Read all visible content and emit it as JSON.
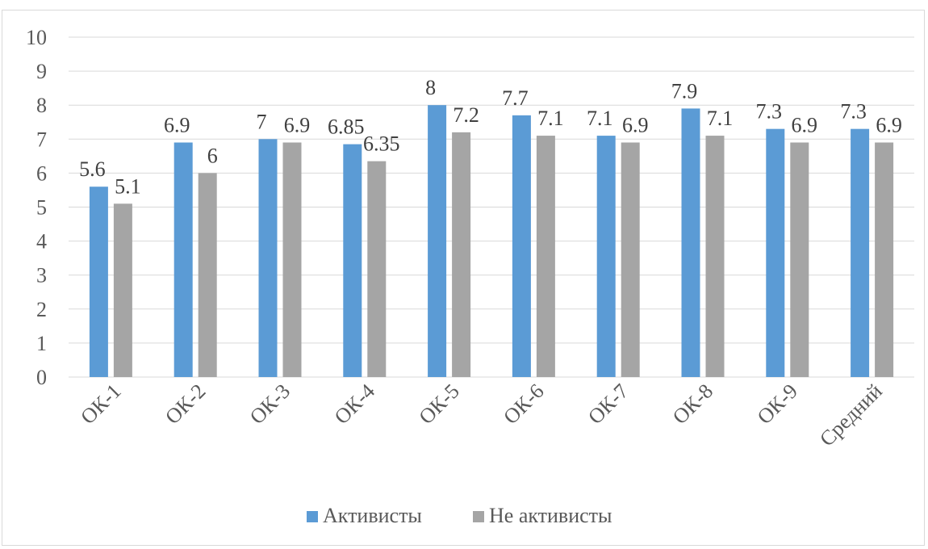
{
  "chart_data": {
    "type": "bar",
    "categories": [
      "ОК-1",
      "ОК-2",
      "ОК-3",
      "ОК-4",
      "ОК-5",
      "ОК-6",
      "ОК-7",
      "ОК-8",
      "ОК-9",
      "Средний"
    ],
    "series": [
      {
        "name": "Активисты",
        "color": "#5b9bd5",
        "values": [
          5.6,
          6.9,
          7,
          6.85,
          8,
          7.7,
          7.1,
          7.9,
          7.3,
          7.3
        ],
        "labels": [
          "5.6",
          "6.9",
          "7",
          "6.85",
          "8",
          "7.7",
          "7.1",
          "7.9",
          "7.3",
          "7.3"
        ]
      },
      {
        "name": "Не активисты",
        "color": "#a5a5a5",
        "values": [
          5.1,
          6,
          6.9,
          6.35,
          7.2,
          7.1,
          6.9,
          7.1,
          6.9,
          6.9
        ],
        "labels": [
          "5.1",
          "6",
          "6.9",
          "6.35",
          "7.2",
          "7.1",
          "6.9",
          "7.1",
          "6.9",
          "6.9"
        ]
      }
    ],
    "yticks": [
      "0",
      "1",
      "2",
      "3",
      "4",
      "5",
      "6",
      "7",
      "8",
      "9",
      "10"
    ],
    "ylim": [
      0,
      10
    ],
    "grid": true,
    "legend": "bottom",
    "gridline_color": "#d9d9d9"
  }
}
